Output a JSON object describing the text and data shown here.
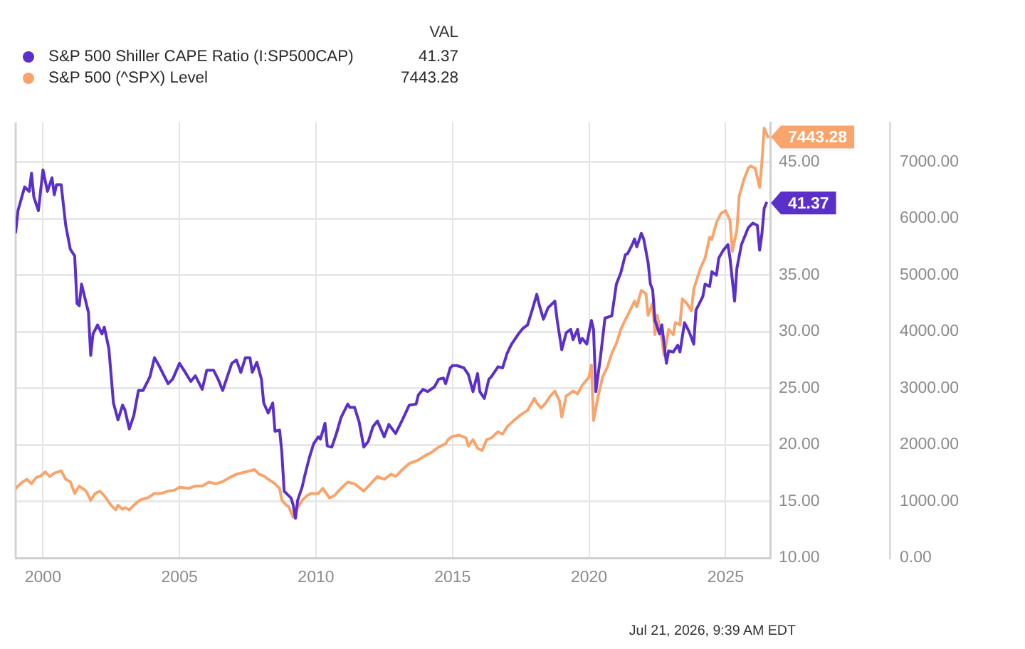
{
  "chart_data": {
    "type": "line",
    "legend": "top left",
    "legend_title": "VAL",
    "grid": true,
    "xlim": [
      "1999-01",
      "2026-08-20"
    ],
    "xticks": [
      "2000",
      "2005",
      "2010",
      "2015",
      "2020",
      "2025"
    ],
    "ylim": [
      10,
      48.5
    ],
    "yticks": [
      {
        "value": 10,
        "label": "10.00"
      },
      {
        "value": 15,
        "label": "15.00"
      },
      {
        "value": 20,
        "label": "20.00"
      },
      {
        "value": 25,
        "label": "25.00"
      },
      {
        "value": 30,
        "label": "30.00"
      },
      {
        "value": 35,
        "label": "35.00"
      },
      {
        "value": 40,
        "label": null
      },
      {
        "value": 45,
        "label": "45.00"
      }
    ],
    "y2lim": [
      0,
      7700
    ],
    "y2ticks": [
      {
        "value": 0,
        "label": "0.00"
      },
      {
        "value": 1000,
        "label": "1000.00"
      },
      {
        "value": 2000,
        "label": "2000.00"
      },
      {
        "value": 3000,
        "label": "3000.00"
      },
      {
        "value": 4000,
        "label": "4000.00"
      },
      {
        "value": 5000,
        "label": "5000.00"
      },
      {
        "value": 6000,
        "label": "6000.00"
      },
      {
        "value": 7000,
        "label": "7000.00"
      }
    ],
    "annotations": [
      "Jul 21, 2026, 9:39 AM EDT"
    ],
    "series": [
      {
        "name": "S&P 500 Shiller CAPE Ratio (I:SP500CAP)",
        "color": "#5b2fc9",
        "axis": "y",
        "x": [
          "1999-01",
          "1999-02",
          "1999-05",
          "1999-07",
          "1999-08",
          "1999-09",
          "1999-11",
          "2000-01",
          "2000-03",
          "2000-05",
          "2000-06",
          "2000-07",
          "2000-09",
          "2000-11",
          "2001-01",
          "2001-03",
          "2001-04",
          "2001-05",
          "2001-06",
          "2001-09",
          "2001-10",
          "2001-11",
          "2002-01",
          "2002-03",
          "2002-04",
          "2002-06",
          "2002-08",
          "2002-10",
          "2002-12",
          "2003-01",
          "2003-03",
          "2003-05",
          "2003-07",
          "2003-09",
          "2003-12",
          "2004-02",
          "2004-04",
          "2004-06",
          "2004-08",
          "2004-10",
          "2005-01",
          "2005-03",
          "2005-06",
          "2005-08",
          "2005-11",
          "2006-01",
          "2006-04",
          "2006-06",
          "2006-08",
          "2006-10",
          "2006-12",
          "2007-02",
          "2007-04",
          "2007-06",
          "2007-08",
          "2007-09",
          "2007-11",
          "2008-01",
          "2008-02",
          "2008-04",
          "2008-06",
          "2008-07",
          "2008-09",
          "2008-10",
          "2008-11",
          "2009-01",
          "2009-02",
          "2009-03",
          "2009-04",
          "2009-05",
          "2009-07",
          "2009-08",
          "2009-10",
          "2009-12",
          "2010-02",
          "2010-03",
          "2010-05",
          "2010-06",
          "2010-08",
          "2010-10",
          "2010-12",
          "2011-03",
          "2011-04",
          "2011-06",
          "2011-08",
          "2011-10",
          "2011-12",
          "2012-02",
          "2012-04",
          "2012-07",
          "2012-09",
          "2012-12",
          "2013-03",
          "2013-06",
          "2013-09",
          "2013-10",
          "2013-12",
          "2014-02",
          "2014-05",
          "2014-07",
          "2014-09",
          "2014-10",
          "2014-12",
          "2015-01",
          "2015-03",
          "2015-06",
          "2015-08",
          "2015-10",
          "2015-12",
          "2016-01",
          "2016-03",
          "2016-05",
          "2016-06",
          "2016-09",
          "2016-11",
          "2017-01",
          "2017-03",
          "2017-06",
          "2017-08",
          "2017-10",
          "2017-12",
          "2018-02",
          "2018-03",
          "2018-05",
          "2018-07",
          "2018-10",
          "2018-11",
          "2019-01",
          "2019-03",
          "2019-05",
          "2019-06",
          "2019-08",
          "2019-09",
          "2019-10",
          "2019-12",
          "2020-02",
          "2020-03",
          "2020-04",
          "2020-06",
          "2020-08",
          "2020-11",
          "2021-01",
          "2021-03",
          "2021-05",
          "2021-06",
          "2021-08",
          "2021-09",
          "2021-10",
          "2021-12",
          "2022-01",
          "2022-03",
          "2022-04",
          "2022-05",
          "2022-06",
          "2022-08",
          "2022-09",
          "2022-11",
          "2022-12",
          "2023-02",
          "2023-04",
          "2023-05",
          "2023-07",
          "2023-09",
          "2023-11",
          "2023-12",
          "2024-03",
          "2024-04",
          "2024-06",
          "2024-07",
          "2024-09",
          "2024-10",
          "2024-12",
          "2025-02",
          "2025-03",
          "2025-05",
          "2025-06",
          "2025-08",
          "2025-09",
          "2025-11",
          "2026-01",
          "2026-03",
          "2026-04",
          "2026-05",
          "2026-06",
          "2026-07"
        ],
        "values": [
          38.8,
          40.7,
          42.8,
          42.4,
          44.0,
          41.9,
          40.7,
          44.3,
          42.4,
          43.6,
          42.1,
          43.0,
          43.0,
          39.4,
          37.3,
          36.7,
          32.5,
          32.3,
          34.2,
          31.7,
          27.9,
          29.8,
          30.6,
          29.8,
          30.4,
          28.5,
          23.7,
          22.2,
          23.5,
          23.1,
          21.4,
          22.6,
          24.8,
          24.8,
          26.0,
          27.7,
          27.0,
          26.2,
          25.4,
          25.8,
          27.2,
          26.6,
          25.6,
          26.1,
          24.9,
          26.6,
          26.6,
          25.8,
          24.8,
          26.0,
          27.2,
          27.5,
          26.4,
          27.7,
          27.7,
          26.4,
          27.3,
          25.8,
          23.7,
          22.8,
          23.7,
          21.2,
          21.3,
          19.3,
          15.9,
          15.5,
          15.3,
          14.7,
          13.5,
          15.1,
          16.3,
          17.2,
          18.8,
          20.1,
          20.7,
          20.5,
          21.9,
          19.9,
          19.8,
          21.0,
          22.4,
          23.6,
          23.3,
          23.3,
          22.0,
          19.8,
          20.3,
          21.6,
          22.1,
          20.7,
          21.8,
          21.0,
          22.2,
          23.5,
          23.6,
          24.4,
          24.9,
          24.7,
          25.1,
          25.8,
          25.9,
          25.4,
          26.8,
          27.0,
          27.0,
          26.8,
          26.2,
          24.7,
          26.3,
          24.7,
          24.1,
          25.8,
          26.0,
          26.9,
          26.8,
          28.1,
          28.9,
          29.8,
          30.3,
          30.6,
          31.9,
          33.3,
          32.5,
          31.1,
          32.1,
          32.7,
          31.0,
          28.4,
          29.9,
          30.2,
          29.3,
          30.2,
          29.0,
          29.4,
          28.9,
          31.0,
          30.2,
          24.7,
          27.7,
          31.2,
          31.4,
          34.2,
          35.2,
          36.8,
          36.9,
          37.7,
          38.2,
          37.5,
          38.7,
          38.2,
          36.1,
          34.2,
          33.7,
          31.0,
          29.8,
          30.6,
          27.2,
          28.3,
          28.2,
          28.8,
          28.2,
          30.8,
          30.0,
          28.9,
          31.9,
          33.1,
          34.2,
          34.0,
          35.3,
          35.0,
          36.5,
          37.2,
          37.7,
          36.5,
          32.7,
          35.6,
          37.7,
          38.2,
          39.2,
          39.6,
          39.4,
          37.2,
          38.6,
          40.9,
          41.37
        ],
        "value_labels": [
          null,
          null,
          null,
          null,
          null,
          null,
          null,
          null,
          null,
          null,
          null,
          null,
          null,
          null,
          null,
          null,
          null,
          null,
          null,
          null,
          null,
          null,
          null,
          null,
          null,
          null,
          null,
          null,
          null,
          null,
          null,
          null,
          null,
          null,
          null,
          null,
          null,
          null,
          null,
          null,
          null,
          null,
          null,
          null,
          null,
          null,
          null,
          null,
          null,
          null,
          null,
          null,
          null,
          null,
          null,
          null,
          null,
          null,
          null,
          null,
          null,
          null,
          null,
          null,
          null,
          null,
          null,
          null,
          null,
          null,
          null,
          null,
          null,
          null,
          null,
          null,
          null,
          null,
          null,
          null,
          null,
          null,
          null,
          null,
          null,
          null,
          null,
          null,
          null,
          null,
          null,
          null,
          null,
          null,
          null,
          null,
          null,
          null,
          null,
          null,
          null,
          null,
          null,
          null,
          null,
          null,
          null,
          null,
          null,
          null,
          null,
          null,
          null,
          null,
          null,
          null,
          null,
          null,
          null,
          null,
          null,
          null,
          null,
          null,
          null,
          null,
          null,
          null,
          null,
          null,
          null,
          null,
          null,
          null,
          null,
          null,
          null,
          null,
          null,
          null,
          null,
          null,
          null,
          null,
          null,
          null,
          null,
          null,
          null,
          null,
          null,
          null,
          null,
          null,
          null,
          null,
          null,
          null,
          null,
          null,
          null,
          null,
          null,
          null,
          null,
          null,
          null,
          null,
          null,
          null,
          null,
          null,
          null,
          null,
          null,
          null,
          null,
          null,
          null,
          null,
          null,
          null,
          null,
          null,
          "41.37"
        ]
      },
      {
        "name": "S&P 500 (^SPX) Level",
        "color": "#f8a46c",
        "axis": "y2",
        "x": [
          "1999-01",
          "1999-04",
          "1999-06",
          "1999-08",
          "1999-10",
          "1999-12",
          "2000-02",
          "2000-04",
          "2000-06",
          "2000-09",
          "2000-11",
          "2001-01",
          "2001-03",
          "2001-05",
          "2001-08",
          "2001-10",
          "2001-12",
          "2002-02",
          "2002-04",
          "2002-07",
          "2002-09",
          "2002-10",
          "2002-12",
          "2003-01",
          "2003-03",
          "2003-06",
          "2003-08",
          "2003-11",
          "2004-02",
          "2004-05",
          "2004-08",
          "2004-11",
          "2005-01",
          "2005-05",
          "2005-08",
          "2005-11",
          "2006-02",
          "2006-05",
          "2006-08",
          "2006-11",
          "2007-02",
          "2007-06",
          "2007-08",
          "2007-10",
          "2007-12",
          "2008-02",
          "2008-04",
          "2008-06",
          "2008-07",
          "2008-09",
          "2008-10",
          "2008-12",
          "2009-01",
          "2009-02",
          "2009-03",
          "2009-05",
          "2009-07",
          "2009-09",
          "2009-11",
          "2010-02",
          "2010-04",
          "2010-07",
          "2010-09",
          "2010-12",
          "2011-03",
          "2011-06",
          "2011-10",
          "2012-01",
          "2012-04",
          "2012-07",
          "2012-10",
          "2012-12",
          "2013-03",
          "2013-06",
          "2013-10",
          "2014-01",
          "2014-04",
          "2014-07",
          "2014-10",
          "2014-11",
          "2015-01",
          "2015-04",
          "2015-07",
          "2015-08",
          "2015-10",
          "2015-12",
          "2016-02",
          "2016-04",
          "2016-06",
          "2016-09",
          "2016-11",
          "2017-01",
          "2017-04",
          "2017-07",
          "2017-10",
          "2018-01",
          "2018-02",
          "2018-04",
          "2018-06",
          "2018-08",
          "2018-10",
          "2018-12",
          "2019-01",
          "2019-03",
          "2019-06",
          "2019-08",
          "2019-10",
          "2020-01",
          "2020-02",
          "2020-03",
          "2020-05",
          "2020-07",
          "2020-09",
          "2020-11",
          "2021-01",
          "2021-03",
          "2021-05",
          "2021-07",
          "2021-09",
          "2021-10",
          "2021-12",
          "2022-02",
          "2022-03",
          "2022-05",
          "2022-06",
          "2022-07",
          "2022-09",
          "2022-10",
          "2022-12",
          "2023-02",
          "2023-03",
          "2023-05",
          "2023-06",
          "2023-08",
          "2023-10",
          "2023-11",
          "2024-02",
          "2024-04",
          "2024-06",
          "2024-07",
          "2024-09",
          "2024-11",
          "2025-01",
          "2025-03",
          "2025-04",
          "2025-06",
          "2025-07",
          "2025-09",
          "2025-11",
          "2025-12",
          "2026-02",
          "2026-04",
          "2026-05",
          "2026-06",
          "2026-07-21"
        ],
        "values": [
          1230,
          1340,
          1390,
          1310,
          1420,
          1450,
          1520,
          1440,
          1500,
          1540,
          1390,
          1350,
          1140,
          1270,
          1180,
          1020,
          1140,
          1180,
          1100,
          930,
          850,
          930,
          860,
          890,
          850,
          970,
          1030,
          1060,
          1140,
          1140,
          1180,
          1200,
          1250,
          1230,
          1270,
          1270,
          1340,
          1310,
          1350,
          1420,
          1480,
          1520,
          1540,
          1560,
          1480,
          1450,
          1390,
          1340,
          1310,
          1230,
          1020,
          930,
          910,
          810,
          720,
          890,
          1020,
          1100,
          1140,
          1140,
          1230,
          1060,
          1100,
          1230,
          1340,
          1310,
          1180,
          1310,
          1440,
          1390,
          1480,
          1440,
          1560,
          1670,
          1730,
          1810,
          1870,
          1960,
          2020,
          2090,
          2150,
          2170,
          2120,
          1980,
          2090,
          1940,
          1900,
          2090,
          2120,
          2230,
          2190,
          2320,
          2430,
          2530,
          2610,
          2820,
          2740,
          2650,
          2740,
          2860,
          2950,
          2780,
          2490,
          2860,
          2950,
          2900,
          3050,
          3200,
          3410,
          2430,
          2860,
          3200,
          3370,
          3620,
          3790,
          4040,
          4210,
          4370,
          4540,
          4440,
          4730,
          4670,
          4290,
          4500,
          3950,
          4290,
          3870,
          3580,
          4040,
          3950,
          4160,
          4120,
          4580,
          4500,
          4370,
          4750,
          5130,
          5300,
          5670,
          5630,
          5930,
          6090,
          6140,
          5970,
          5420,
          5800,
          6390,
          6680,
          6890,
          6930,
          6890,
          6550,
          6980,
          7600,
          7443.28
        ],
        "value_labels": [
          null,
          null,
          null,
          null,
          null,
          null,
          null,
          null,
          null,
          null,
          null,
          null,
          null,
          null,
          null,
          null,
          null,
          null,
          null,
          null,
          null,
          null,
          null,
          null,
          null,
          null,
          null,
          null,
          null,
          null,
          null,
          null,
          null,
          null,
          null,
          null,
          null,
          null,
          null,
          null,
          null,
          null,
          null,
          null,
          null,
          null,
          null,
          null,
          null,
          null,
          null,
          null,
          null,
          null,
          null,
          null,
          null,
          null,
          null,
          null,
          null,
          null,
          null,
          null,
          null,
          null,
          null,
          null,
          null,
          null,
          null,
          null,
          null,
          null,
          null,
          null,
          null,
          null,
          null,
          null,
          null,
          null,
          null,
          null,
          null,
          null,
          null,
          null,
          null,
          null,
          null,
          null,
          null,
          null,
          null,
          null,
          null,
          null,
          null,
          null,
          null,
          null,
          null,
          null,
          null,
          null,
          null,
          null,
          null,
          null,
          null,
          null,
          null,
          null,
          null,
          null,
          null,
          null,
          null,
          null,
          null,
          null,
          null,
          null,
          null,
          null,
          null,
          null,
          null,
          null,
          null,
          null,
          null,
          null,
          null,
          null,
          null,
          null,
          null,
          null,
          null,
          null,
          null,
          null,
          null,
          null,
          null,
          null,
          null,
          null,
          null,
          null,
          null,
          null,
          "7443.28"
        ]
      }
    ]
  }
}
